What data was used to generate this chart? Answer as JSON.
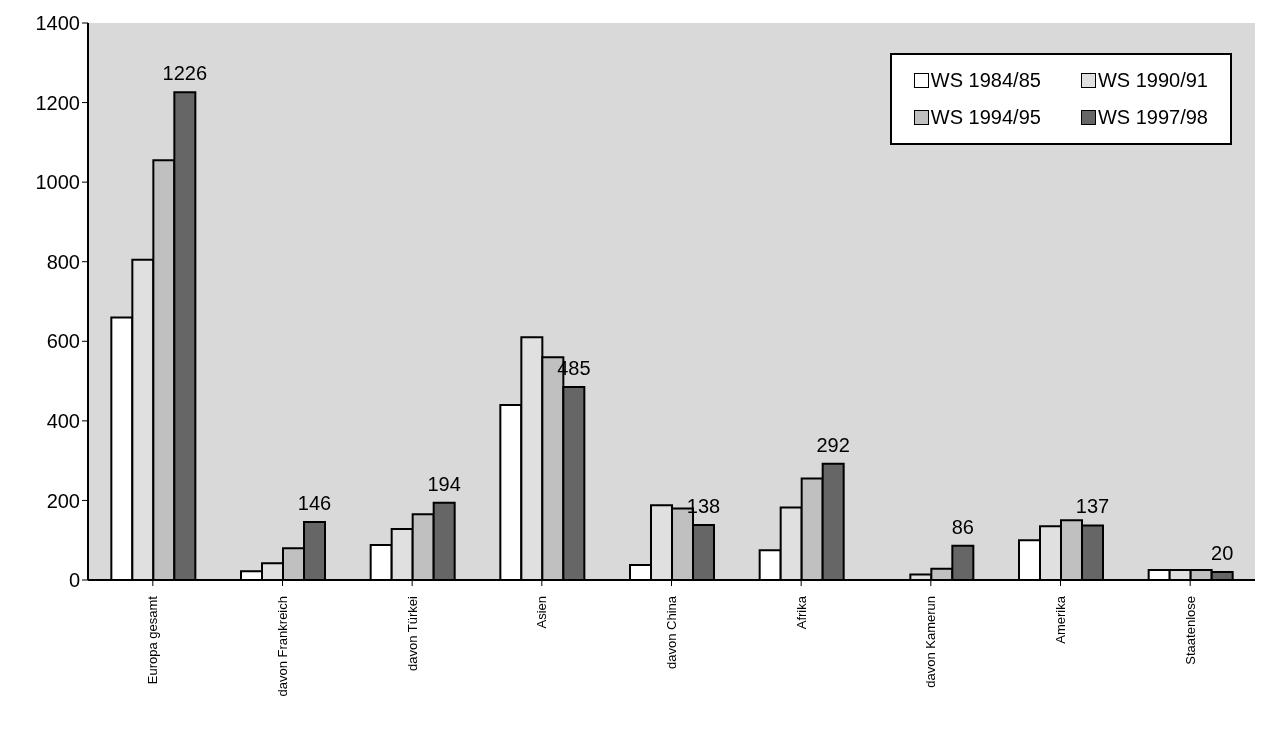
{
  "chart_data": {
    "type": "bar",
    "categories": [
      "Europa gesamt",
      "davon Frankreich",
      "davon Türkei",
      "Asien",
      "davon China",
      "Afrika",
      "davon Kamerun",
      "Amerika",
      "Staatenlose"
    ],
    "series": [
      {
        "name": "WS 1984/85",
        "color": "#ffffff",
        "values": [
          660,
          22,
          88,
          440,
          38,
          75,
          null,
          100,
          25
        ]
      },
      {
        "name": "WS 1990/91",
        "color": "#e0e0e0",
        "values": [
          805,
          42,
          128,
          610,
          188,
          182,
          14,
          135,
          25
        ]
      },
      {
        "name": "WS 1994/95",
        "color": "#c0c0c0",
        "values": [
          1055,
          80,
          165,
          560,
          180,
          255,
          28,
          150,
          25
        ]
      },
      {
        "name": "WS 1997/98",
        "color": "#666666",
        "values": [
          1226,
          146,
          194,
          485,
          138,
          292,
          86,
          137,
          20
        ],
        "value_labels": [
          "1226",
          "146",
          "194",
          "485",
          "138",
          "292",
          "86",
          "137",
          "20"
        ]
      }
    ],
    "ylim": [
      0,
      1400
    ],
    "yticks": [
      0,
      200,
      400,
      600,
      800,
      1000,
      1200,
      1400
    ],
    "grid": false,
    "legend": "top right"
  }
}
